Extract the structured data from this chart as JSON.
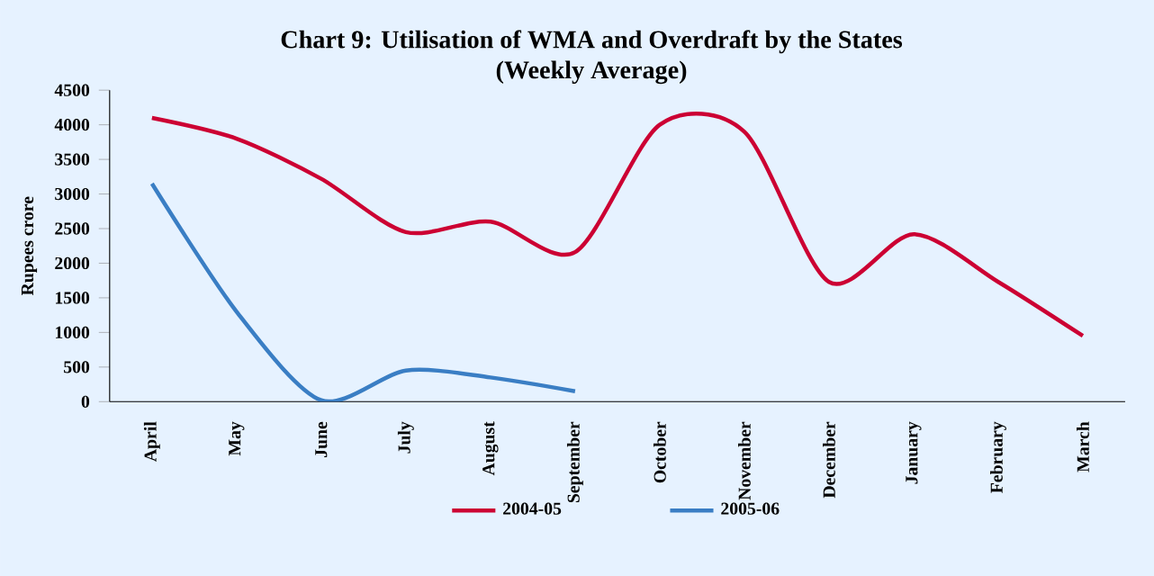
{
  "chart_data": {
    "type": "line",
    "title": "Chart 9: Utilisation of WMA and Overdraft by the States",
    "subtitle": "(Weekly Average)",
    "ylabel": "Rupees crore",
    "categories": [
      "April",
      "May",
      "June",
      "July",
      "August",
      "September",
      "October",
      "November",
      "December",
      "January",
      "February",
      "March"
    ],
    "series": [
      {
        "name": "2004-05",
        "color": "#cc0033",
        "values": [
          4100,
          3800,
          3220,
          2450,
          2600,
          2160,
          4000,
          3900,
          1730,
          2420,
          1730,
          950
        ]
      },
      {
        "name": "2005-06",
        "color": "#3a7ec4",
        "values": [
          3150,
          1300,
          20,
          450,
          350,
          150,
          null,
          null,
          null,
          null,
          null,
          null
        ]
      }
    ],
    "ylim": [
      0,
      4500
    ],
    "yticks": [
      0,
      500,
      1000,
      1500,
      2000,
      2500,
      3000,
      3500,
      4000,
      4500
    ],
    "legend": "bottom",
    "grid": false,
    "marker": "none",
    "line_style": "solid"
  }
}
